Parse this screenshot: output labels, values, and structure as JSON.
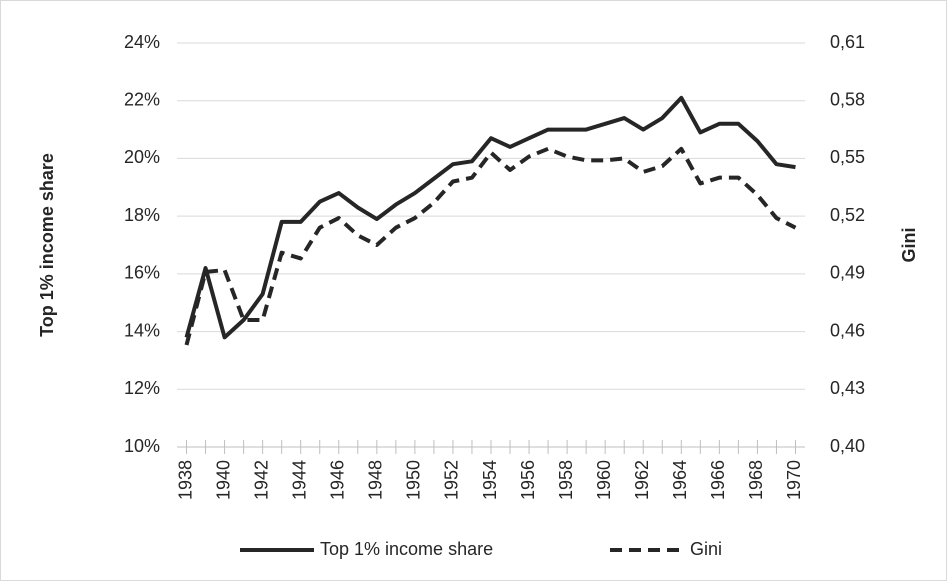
{
  "chart_data": {
    "type": "line",
    "y_label": "Top 1% income share",
    "y2_label": "Gini",
    "x": [
      1938,
      1939,
      1940,
      1941,
      1942,
      1943,
      1944,
      1945,
      1946,
      1947,
      1948,
      1949,
      1950,
      1951,
      1952,
      1953,
      1954,
      1955,
      1956,
      1957,
      1958,
      1959,
      1960,
      1961,
      1962,
      1963,
      1964,
      1965,
      1966,
      1967,
      1968,
      1969,
      1970
    ],
    "xlim": [
      1937.5,
      1970.5
    ],
    "xticks": [
      1938,
      1940,
      1942,
      1944,
      1946,
      1948,
      1950,
      1952,
      1954,
      1956,
      1958,
      1960,
      1962,
      1964,
      1966,
      1968,
      1970
    ],
    "ylim": [
      10,
      24
    ],
    "yticks": [
      {
        "value": 10,
        "label": "10%"
      },
      {
        "value": 12,
        "label": "12%"
      },
      {
        "value": 14,
        "label": "14%"
      },
      {
        "value": 16,
        "label": "16%"
      },
      {
        "value": 18,
        "label": "18%"
      },
      {
        "value": 20,
        "label": "20%"
      },
      {
        "value": 22,
        "label": "22%"
      },
      {
        "value": 24,
        "label": "24%"
      }
    ],
    "y2lim": [
      0.4,
      0.61
    ],
    "y2ticks": [
      {
        "value": 0.4,
        "label": "0,40"
      },
      {
        "value": 0.43,
        "label": "0,43"
      },
      {
        "value": 0.46,
        "label": "0,46"
      },
      {
        "value": 0.49,
        "label": "0,49"
      },
      {
        "value": 0.52,
        "label": "0,52"
      },
      {
        "value": 0.55,
        "label": "0,55"
      },
      {
        "value": 0.58,
        "label": "0,58"
      },
      {
        "value": 0.61,
        "label": "0,61"
      }
    ],
    "grid": true,
    "legend": "bottom",
    "series": [
      {
        "name": "Top 1% income share",
        "color": "#262626",
        "dash": false,
        "values": [
          13.8,
          16.2,
          13.8,
          14.4,
          15.3,
          17.8,
          17.8,
          18.5,
          18.8,
          18.3,
          17.9,
          18.4,
          18.8,
          19.3,
          19.8,
          19.9,
          20.7,
          20.4,
          20.7,
          21.0,
          21.0,
          21.0,
          21.2,
          21.4,
          21.0,
          21.4,
          22.1,
          20.9,
          21.2,
          21.2,
          20.6,
          19.8,
          19.7
        ]
      },
      {
        "name": "Gini",
        "color": "#262626",
        "dash": true,
        "axis": "y2",
        "values": [
          0.453,
          0.491,
          0.492,
          0.466,
          0.466,
          0.501,
          0.498,
          0.514,
          0.519,
          0.51,
          0.505,
          0.514,
          0.519,
          0.527,
          0.538,
          0.54,
          0.553,
          0.544,
          0.551,
          0.555,
          0.551,
          0.549,
          0.549,
          0.55,
          0.543,
          0.546,
          0.555,
          0.537,
          0.54,
          0.54,
          0.531,
          0.519,
          0.514
        ]
      }
    ]
  }
}
